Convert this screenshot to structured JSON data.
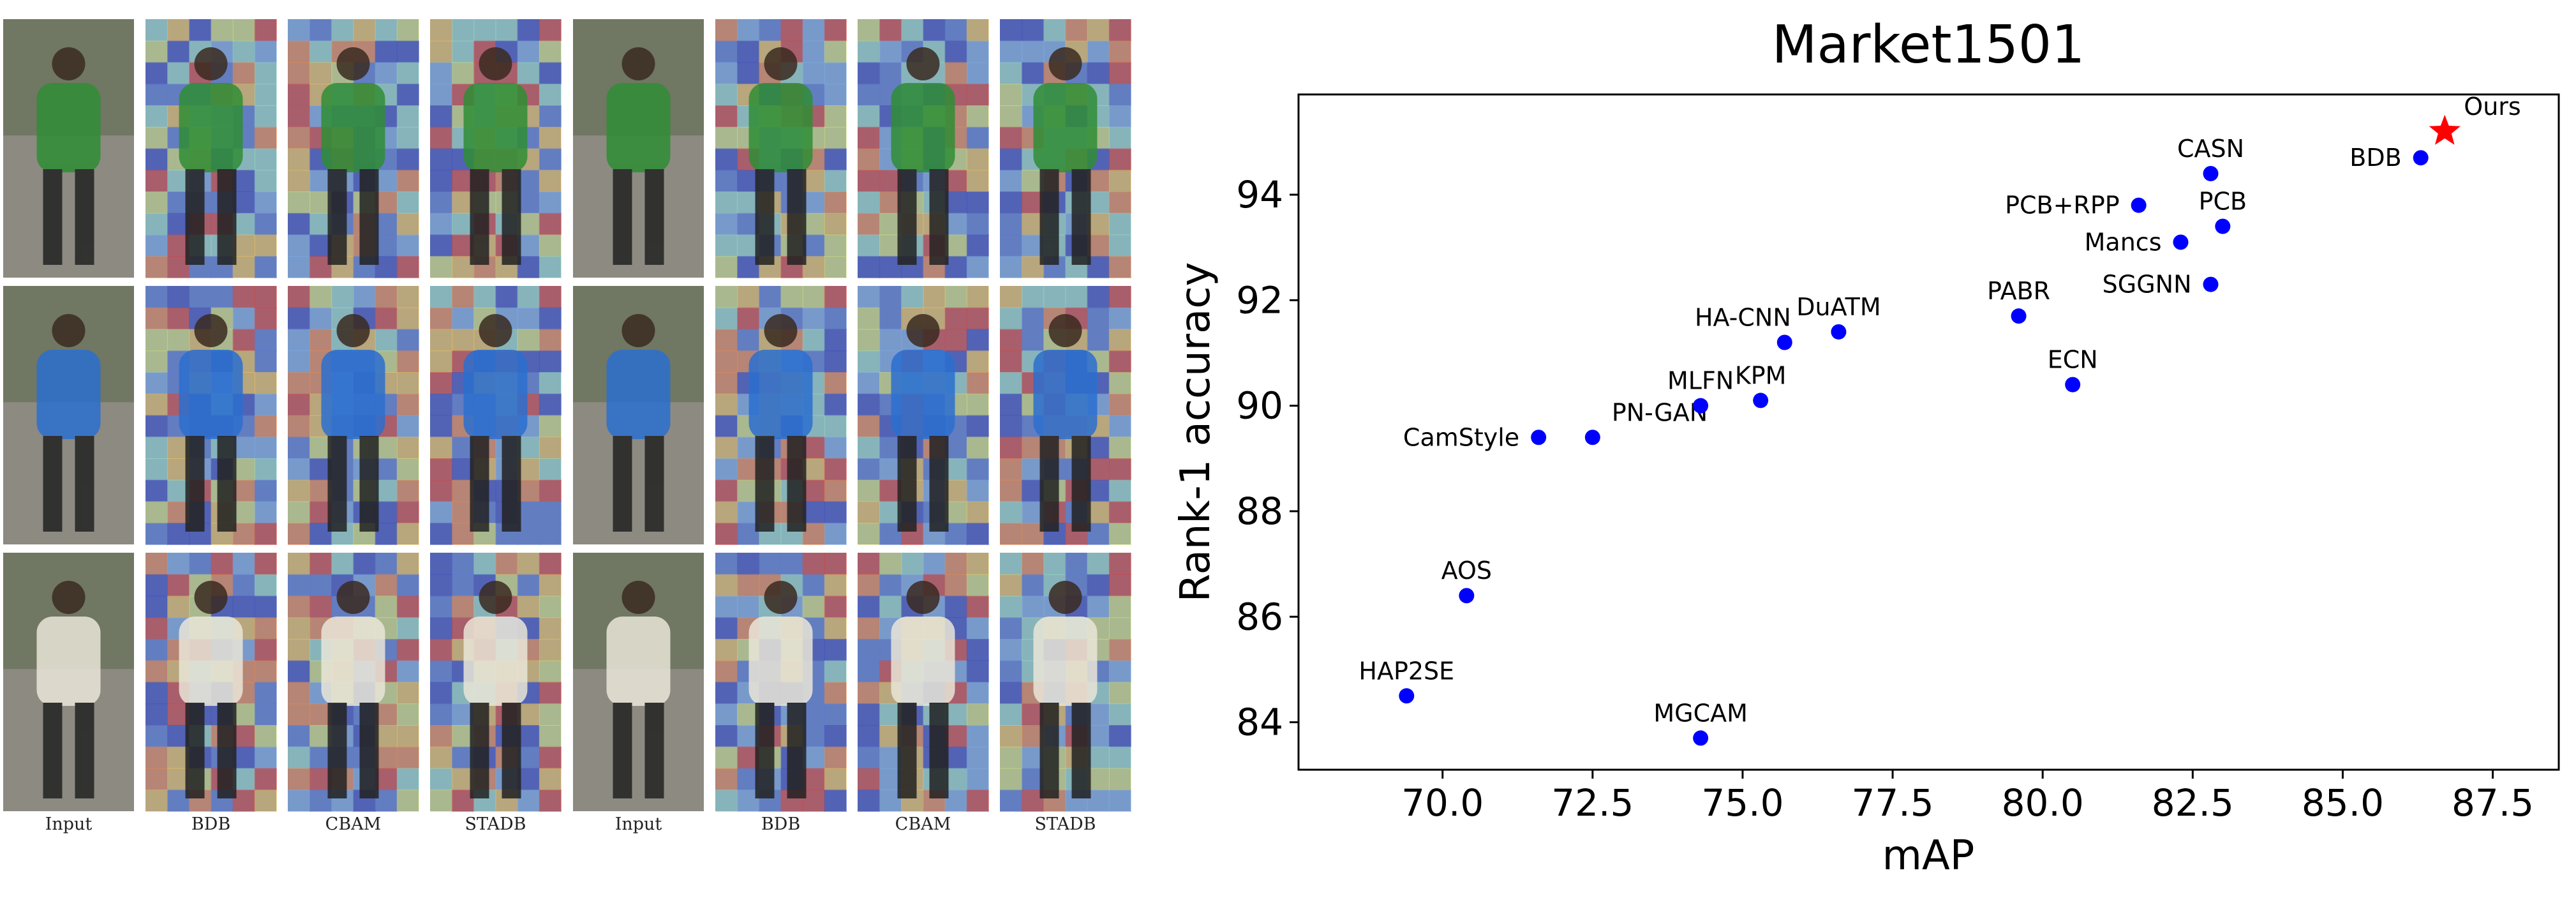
{
  "figure": {
    "left": {
      "column_labels": [
        "Input",
        "BDB",
        "CBAM",
        "STADB",
        "Input",
        "BDB",
        "CBAM",
        "STADB"
      ]
    }
  },
  "chart_data": {
    "type": "scatter",
    "title": "Market1501",
    "xlabel": "mAP",
    "ylabel": "Rank-1 accuracy",
    "xlim": [
      67.6,
      88.6
    ],
    "ylim": [
      83.1,
      95.9
    ],
    "xticks": [
      70.0,
      72.5,
      75.0,
      77.5,
      80.0,
      82.5,
      85.0,
      87.5
    ],
    "xtick_labels": [
      "70.0",
      "72.5",
      "75.0",
      "77.5",
      "80.0",
      "82.5",
      "85.0",
      "87.5"
    ],
    "yticks": [
      84,
      86,
      88,
      90,
      92,
      94
    ],
    "ytick_labels": [
      "84",
      "86",
      "88",
      "90",
      "92",
      "94"
    ],
    "grid": false,
    "legend": "none",
    "colors": {
      "points": "#0000ff",
      "highlight": "#ff0000",
      "text": "#000000"
    },
    "points": [
      {
        "label": "HAP2SE",
        "x": 69.4,
        "y": 84.5,
        "label_pos": "above"
      },
      {
        "label": "AOS",
        "x": 70.4,
        "y": 86.4,
        "label_pos": "above"
      },
      {
        "label": "CamStyle",
        "x": 71.6,
        "y": 89.4,
        "label_pos": "left"
      },
      {
        "label": "PN-GAN",
        "x": 72.5,
        "y": 89.4,
        "label_pos": "above-right"
      },
      {
        "label": "MLFN",
        "x": 74.3,
        "y": 90.0,
        "label_pos": "above"
      },
      {
        "label": "KPM",
        "x": 75.3,
        "y": 90.1,
        "label_pos": "above"
      },
      {
        "label": "MGCAM",
        "x": 74.3,
        "y": 83.7,
        "label_pos": "above"
      },
      {
        "label": "HA-CNN",
        "x": 75.7,
        "y": 91.2,
        "label_pos": "above-left"
      },
      {
        "label": "DuATM",
        "x": 76.6,
        "y": 91.4,
        "label_pos": "above"
      },
      {
        "label": "PABR",
        "x": 79.6,
        "y": 91.7,
        "label_pos": "above"
      },
      {
        "label": "ECN",
        "x": 80.5,
        "y": 90.4,
        "label_pos": "above"
      },
      {
        "label": "PCB+RPP",
        "x": 81.6,
        "y": 93.8,
        "label_pos": "left"
      },
      {
        "label": "Mancs",
        "x": 82.3,
        "y": 93.1,
        "label_pos": "left"
      },
      {
        "label": "SGGNN",
        "x": 82.8,
        "y": 92.3,
        "label_pos": "left"
      },
      {
        "label": "CASN",
        "x": 82.8,
        "y": 94.4,
        "label_pos": "above"
      },
      {
        "label": "PCB",
        "x": 83.0,
        "y": 93.4,
        "label_pos": "above"
      },
      {
        "label": "BDB",
        "x": 86.3,
        "y": 94.7,
        "label_pos": "left"
      },
      {
        "label": "Ours",
        "x": 86.7,
        "y": 95.2,
        "label_pos": "above-right",
        "marker": "star"
      }
    ]
  }
}
